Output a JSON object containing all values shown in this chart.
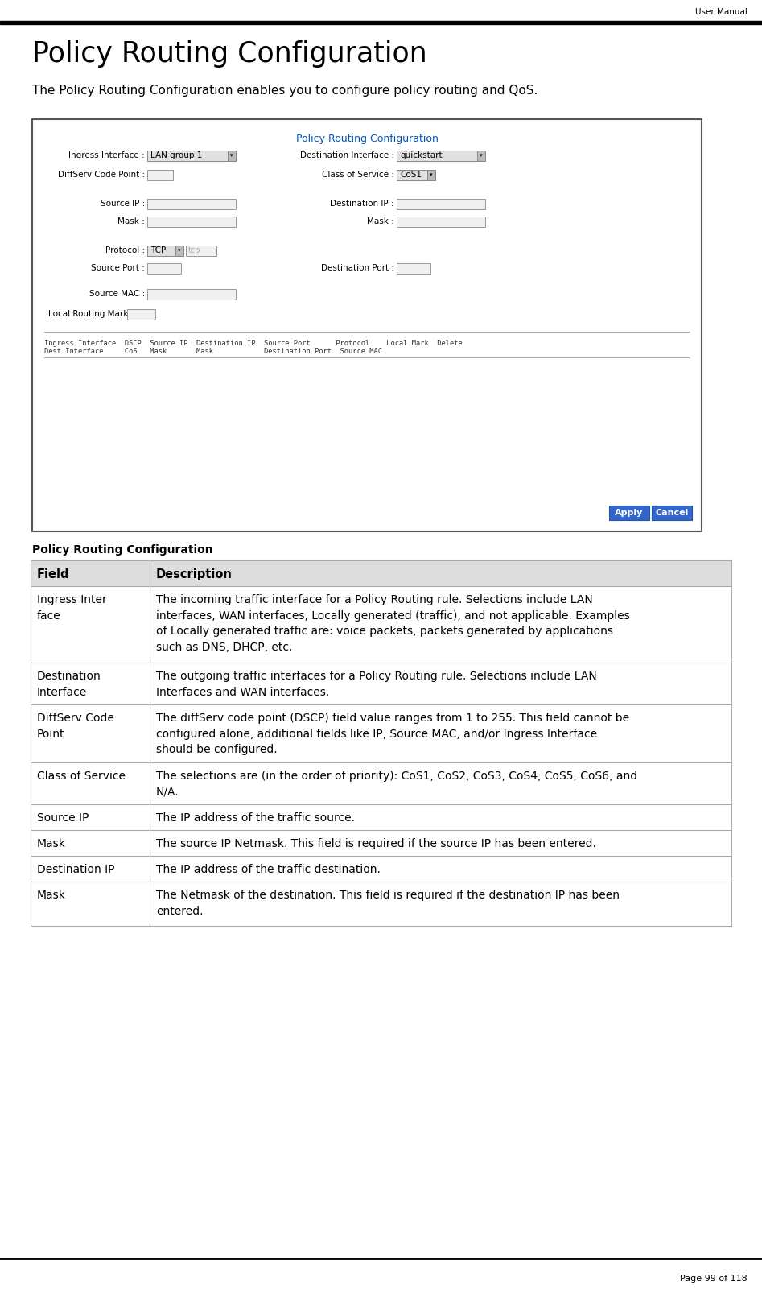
{
  "page_title": "User Manual",
  "section_title": "Policy Routing Configuration",
  "section_subtitle": "The Policy Routing Configuration enables you to configure policy routing and QoS.",
  "screenshot_title": "Policy Routing Configuration",
  "screenshot_title_color": "#0055bb",
  "caption": "Policy Routing Configuration",
  "page_footer": "Page 99 of 118",
  "table_header": [
    "Field",
    "Description"
  ],
  "table_rows": [
    [
      "Ingress Inter\nface",
      "The incoming traffic interface for a Policy Routing rule. Selections include LAN\ninterfaces, WAN interfaces, Locally generated (traffic), and not applicable. Examples\nof Locally generated traffic are: voice packets, packets generated by applications\nsuch as DNS, DHCP, etc."
    ],
    [
      "Destination\nInterface",
      "The outgoing traffic interfaces for a Policy Routing rule. Selections include LAN\nInterfaces and WAN interfaces."
    ],
    [
      "DiffServ Code\nPoint",
      "The diffServ code point (DSCP) field value ranges from 1 to 255. This field cannot be\nconfigured alone, additional fields like IP, Source MAC, and/or Ingress Interface\nshould be configured."
    ],
    [
      "Class of Service",
      "The selections are (in the order of priority): CoS1, CoS2, CoS3, CoS4, CoS5, CoS6, and\nN/A."
    ],
    [
      "Source IP",
      "The IP address of the traffic source."
    ],
    [
      "Mask",
      "The source IP Netmask. This field is required if the source IP has been entered."
    ],
    [
      "Destination IP",
      "The IP address of the traffic destination."
    ],
    [
      "Mask",
      "The Netmask of the destination. This field is required if the destination IP has been\nentered."
    ]
  ],
  "bg_color": "#ffffff",
  "table_line_color": "#aaaaaa",
  "header_bg": "#dddddd",
  "screenshot_border_color": "#555555"
}
